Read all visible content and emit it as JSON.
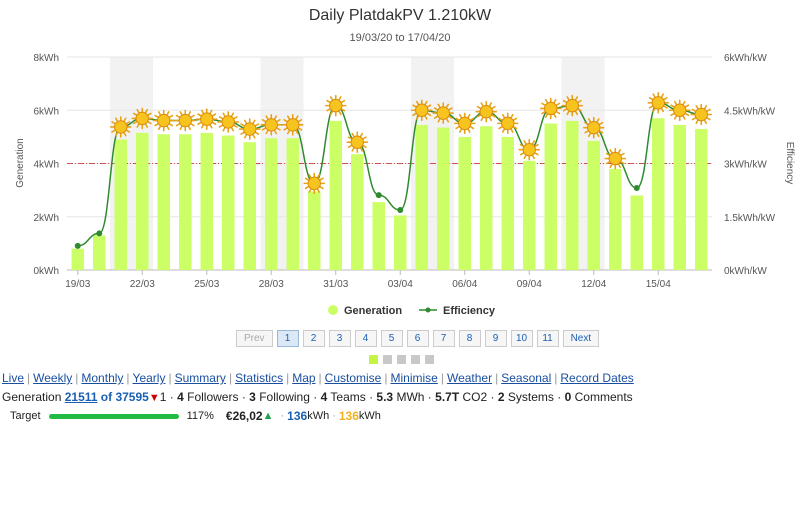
{
  "chart_data": {
    "type": "bar",
    "title": "Daily PlatdakPV 1.210kW",
    "subtitle": "19/03/20 to 17/04/20",
    "ylabel_left": "Generation",
    "ylabel_right": "Efficiency",
    "left_ticks": [
      "0kWh",
      "2kWh",
      "4kWh",
      "6kWh",
      "8kWh"
    ],
    "right_ticks": [
      "0kWh/kW",
      "1.5kWh/kW",
      "3kWh/kW",
      "4.5kWh/kW",
      "6kWh/kW"
    ],
    "ylim": [
      0,
      8
    ],
    "ylim_right": [
      0,
      6
    ],
    "x_tick_labels": [
      "19/03",
      "22/03",
      "25/03",
      "28/03",
      "31/03",
      "03/04",
      "06/04",
      "09/04",
      "12/04",
      "15/04"
    ],
    "reference_line": 4,
    "weekend_bands": [
      [
        "21/03",
        "22/03"
      ],
      [
        "28/03",
        "29/03"
      ],
      [
        "04/04",
        "05/04"
      ],
      [
        "11/04",
        "12/04"
      ]
    ],
    "categories": [
      "19/03",
      "20/03",
      "21/03",
      "22/03",
      "23/03",
      "24/03",
      "25/03",
      "26/03",
      "27/03",
      "28/03",
      "29/03",
      "30/03",
      "31/03",
      "01/04",
      "02/04",
      "03/04",
      "04/04",
      "05/04",
      "06/04",
      "07/04",
      "08/04",
      "09/04",
      "10/04",
      "11/04",
      "12/04",
      "13/04",
      "14/04",
      "15/04",
      "16/04",
      "17/04"
    ],
    "series": [
      {
        "name": "Generation",
        "color": "#ccff66",
        "values": [
          0.8,
          1.3,
          4.9,
          5.15,
          5.1,
          5.1,
          5.15,
          5.05,
          4.8,
          4.95,
          4.95,
          2.95,
          5.6,
          4.35,
          2.55,
          2.05,
          5.45,
          5.35,
          5.0,
          5.4,
          5.0,
          4.1,
          5.5,
          5.6,
          4.85,
          3.8,
          2.8,
          5.7,
          5.45,
          5.3
        ]
      },
      {
        "name": "Efficiency",
        "color": "#2e8b2e",
        "values": [
          0.68,
          1.03,
          4.03,
          4.27,
          4.21,
          4.21,
          4.25,
          4.17,
          3.97,
          4.09,
          4.09,
          2.44,
          4.63,
          3.6,
          2.11,
          1.69,
          4.5,
          4.42,
          4.13,
          4.46,
          4.13,
          3.39,
          4.55,
          4.63,
          4.01,
          3.14,
          2.31,
          4.71,
          4.5,
          4.38
        ],
        "sunny_marker_days": [
          "21/03",
          "22/03",
          "23/03",
          "24/03",
          "25/03",
          "26/03",
          "27/03",
          "28/03",
          "29/03",
          "30/03",
          "31/03",
          "01/04",
          "04/04",
          "05/04",
          "06/04",
          "07/04",
          "08/04",
          "09/04",
          "10/04",
          "11/04",
          "12/04",
          "13/04",
          "15/04",
          "16/04",
          "17/04"
        ]
      }
    ],
    "legend": [
      "Generation",
      "Efficiency"
    ],
    "legend_position": "bottom"
  },
  "pager": {
    "prev_label": "Prev",
    "pages": [
      "1",
      "2",
      "3",
      "4",
      "5",
      "6",
      "7",
      "8",
      "9",
      "10",
      "11"
    ],
    "active_page": "1",
    "next_label": "Next"
  },
  "selector_count": 5,
  "links": [
    "Live",
    "Weekly",
    "Monthly",
    "Yearly",
    "Summary",
    "Statistics",
    "Map",
    "Customise",
    "Minimise",
    "Weather",
    "Seasonal",
    "Record Dates"
  ],
  "stats": {
    "label": "Generation",
    "rank": "21511",
    "of_text": "of 37595",
    "rank_change": "1",
    "followers": "4",
    "followers_label": "Followers",
    "following": "3",
    "following_label": "Following",
    "teams": "4",
    "teams_label": "Teams",
    "energy": "5.3",
    "energy_unit": "MWh",
    "co2": "5.7T",
    "co2_label": "CO2",
    "systems": "2",
    "systems_label": "Systems",
    "comments": "0",
    "comments_label": "Comments"
  },
  "target": {
    "label": "Target",
    "percent": "117%",
    "percent_value": 1.17,
    "money": "€26,02",
    "value_blue": "136",
    "unit_blue": "kWh",
    "value_yellow": "136",
    "unit_yellow": "kWh"
  }
}
